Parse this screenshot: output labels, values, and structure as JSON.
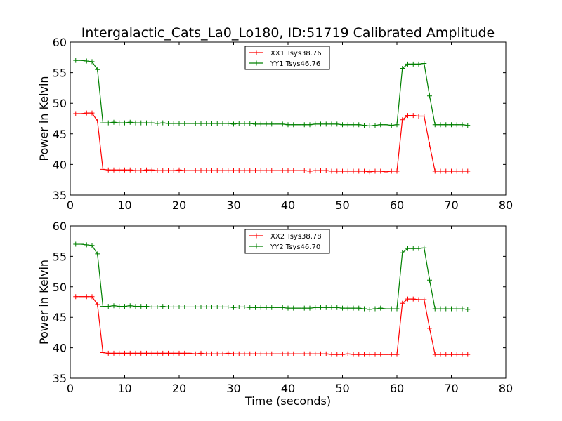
{
  "chart_data": [
    {
      "type": "line",
      "title": "Intergalactic_Cats_La0_Lo180, ID:51719 Calibrated Amplitude",
      "xlabel": "",
      "ylabel": "Power in Kelvin",
      "xlim": [
        0,
        80
      ],
      "ylim": [
        35,
        60
      ],
      "xticks": [
        "0",
        "10",
        "20",
        "30",
        "40",
        "50",
        "60",
        "70",
        "80"
      ],
      "yticks": [
        "35",
        "40",
        "45",
        "50",
        "55",
        "60"
      ],
      "legend_position": "top-center",
      "marker": "plus",
      "x": [
        1,
        2,
        3,
        4,
        5,
        6,
        7,
        8,
        9,
        10,
        11,
        12,
        13,
        14,
        15,
        16,
        17,
        18,
        19,
        20,
        21,
        22,
        23,
        24,
        25,
        26,
        27,
        28,
        29,
        30,
        31,
        32,
        33,
        34,
        35,
        36,
        37,
        38,
        39,
        40,
        41,
        42,
        43,
        44,
        45,
        46,
        47,
        48,
        49,
        50,
        51,
        52,
        53,
        54,
        55,
        56,
        57,
        58,
        59,
        60,
        61,
        62,
        63,
        64,
        65,
        66,
        67,
        68,
        69,
        70,
        71,
        72,
        73
      ],
      "series": [
        {
          "name": "XX1 Tsys38.76",
          "color": "#ff0000",
          "values": [
            48.3,
            48.3,
            48.4,
            48.4,
            47.1,
            39.2,
            39.1,
            39.1,
            39.1,
            39.1,
            39.1,
            39.0,
            39.0,
            39.1,
            39.1,
            39.0,
            39.0,
            39.0,
            39.0,
            39.1,
            39.0,
            39.0,
            39.0,
            39.0,
            39.0,
            39.0,
            39.0,
            39.0,
            39.0,
            39.0,
            39.0,
            39.0,
            39.0,
            39.0,
            39.0,
            39.0,
            39.0,
            39.0,
            39.0,
            39.0,
            39.0,
            39.0,
            39.0,
            38.9,
            39.0,
            39.0,
            39.0,
            38.9,
            38.9,
            38.9,
            38.9,
            38.9,
            38.9,
            38.9,
            38.8,
            38.9,
            38.9,
            38.8,
            38.9,
            38.9,
            47.3,
            48.0,
            48.0,
            47.9,
            47.9,
            43.2,
            38.9,
            38.9,
            38.9,
            38.9,
            38.9,
            38.9,
            38.9
          ]
        },
        {
          "name": "YY1 Tsys46.76",
          "color": "#008000",
          "values": [
            57.0,
            57.0,
            56.9,
            56.8,
            55.5,
            46.8,
            46.8,
            46.9,
            46.8,
            46.8,
            46.9,
            46.8,
            46.8,
            46.8,
            46.8,
            46.7,
            46.8,
            46.7,
            46.7,
            46.7,
            46.7,
            46.7,
            46.7,
            46.7,
            46.7,
            46.7,
            46.7,
            46.7,
            46.7,
            46.6,
            46.7,
            46.7,
            46.7,
            46.6,
            46.6,
            46.6,
            46.6,
            46.6,
            46.6,
            46.5,
            46.5,
            46.5,
            46.5,
            46.5,
            46.6,
            46.6,
            46.6,
            46.6,
            46.6,
            46.5,
            46.5,
            46.5,
            46.5,
            46.4,
            46.3,
            46.4,
            46.5,
            46.5,
            46.4,
            46.5,
            55.7,
            56.4,
            56.4,
            56.4,
            56.5,
            51.2,
            46.5,
            46.5,
            46.5,
            46.5,
            46.5,
            46.5,
            46.4
          ]
        }
      ]
    },
    {
      "type": "line",
      "title": "",
      "xlabel": "Time (seconds)",
      "ylabel": "Power in Kelvin",
      "xlim": [
        0,
        80
      ],
      "ylim": [
        35,
        60
      ],
      "xticks": [
        "0",
        "10",
        "20",
        "30",
        "40",
        "50",
        "60",
        "70",
        "80"
      ],
      "yticks": [
        "35",
        "40",
        "45",
        "50",
        "55",
        "60"
      ],
      "legend_position": "top-center",
      "marker": "plus",
      "x": [
        1,
        2,
        3,
        4,
        5,
        6,
        7,
        8,
        9,
        10,
        11,
        12,
        13,
        14,
        15,
        16,
        17,
        18,
        19,
        20,
        21,
        22,
        23,
        24,
        25,
        26,
        27,
        28,
        29,
        30,
        31,
        32,
        33,
        34,
        35,
        36,
        37,
        38,
        39,
        40,
        41,
        42,
        43,
        44,
        45,
        46,
        47,
        48,
        49,
        50,
        51,
        52,
        53,
        54,
        55,
        56,
        57,
        58,
        59,
        60,
        61,
        62,
        63,
        64,
        65,
        66,
        67,
        68,
        69,
        70,
        71,
        72,
        73
      ],
      "series": [
        {
          "name": "XX2 Tsys38.78",
          "color": "#ff0000",
          "values": [
            48.4,
            48.4,
            48.4,
            48.4,
            47.1,
            39.2,
            39.1,
            39.1,
            39.1,
            39.1,
            39.1,
            39.1,
            39.1,
            39.1,
            39.1,
            39.1,
            39.1,
            39.1,
            39.1,
            39.1,
            39.1,
            39.1,
            39.0,
            39.1,
            39.0,
            39.0,
            39.0,
            39.0,
            39.1,
            39.0,
            39.0,
            39.0,
            39.0,
            39.0,
            39.0,
            39.0,
            39.0,
            39.0,
            39.0,
            39.0,
            39.0,
            39.0,
            39.0,
            39.0,
            39.0,
            39.0,
            39.0,
            38.9,
            38.9,
            38.9,
            39.0,
            38.9,
            38.9,
            38.9,
            38.9,
            38.9,
            38.9,
            38.9,
            38.9,
            38.9,
            47.3,
            48.0,
            48.0,
            47.9,
            47.9,
            43.2,
            38.9,
            38.9,
            38.9,
            38.9,
            38.9,
            38.9,
            38.9
          ]
        },
        {
          "name": "YY2 Tsys46.70",
          "color": "#008000",
          "values": [
            57.0,
            57.0,
            56.9,
            56.8,
            55.4,
            46.8,
            46.8,
            46.9,
            46.8,
            46.8,
            46.9,
            46.8,
            46.8,
            46.8,
            46.7,
            46.7,
            46.8,
            46.7,
            46.7,
            46.7,
            46.7,
            46.7,
            46.7,
            46.7,
            46.7,
            46.7,
            46.7,
            46.7,
            46.7,
            46.6,
            46.7,
            46.7,
            46.6,
            46.6,
            46.6,
            46.6,
            46.6,
            46.6,
            46.6,
            46.5,
            46.5,
            46.5,
            46.5,
            46.5,
            46.6,
            46.6,
            46.6,
            46.6,
            46.6,
            46.5,
            46.5,
            46.5,
            46.5,
            46.4,
            46.3,
            46.4,
            46.5,
            46.4,
            46.4,
            46.4,
            55.6,
            56.3,
            56.3,
            56.3,
            56.4,
            51.1,
            46.4,
            46.4,
            46.4,
            46.4,
            46.4,
            46.4,
            46.3
          ]
        }
      ]
    }
  ]
}
